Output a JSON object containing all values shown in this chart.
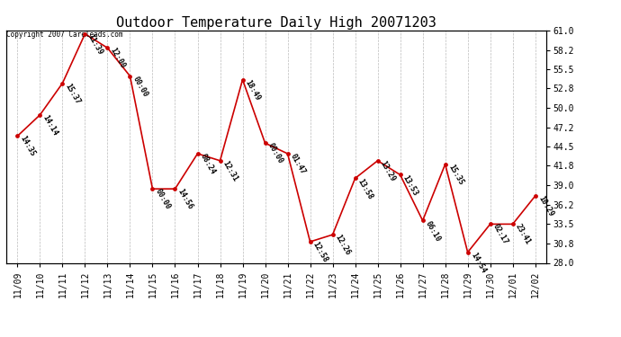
{
  "title": "Outdoor Temperature Daily High 20071203",
  "copyright": "Copyright 2007 Careleads.com",
  "x_labels": [
    "11/09",
    "11/10",
    "11/11",
    "11/12",
    "11/13",
    "11/14",
    "11/15",
    "11/16",
    "11/17",
    "11/18",
    "11/19",
    "11/20",
    "11/21",
    "11/22",
    "11/23",
    "11/24",
    "11/25",
    "11/26",
    "11/27",
    "11/28",
    "11/29",
    "11/30",
    "12/01",
    "12/02"
  ],
  "y_values": [
    46.0,
    49.0,
    53.5,
    60.5,
    58.5,
    54.5,
    38.5,
    38.5,
    43.5,
    42.5,
    54.0,
    45.0,
    43.5,
    31.0,
    32.0,
    40.0,
    42.5,
    40.5,
    34.0,
    42.0,
    29.5,
    33.5,
    33.5,
    37.5
  ],
  "point_labels": [
    "14:35",
    "14:14",
    "15:37",
    "11:39",
    "12:00",
    "00:00",
    "00:00",
    "14:56",
    "08:24",
    "12:31",
    "18:49",
    "00:00",
    "01:47",
    "12:58",
    "12:26",
    "13:58",
    "13:29",
    "13:53",
    "06:10",
    "15:35",
    "14:54",
    "02:17",
    "23:41",
    "10:29"
  ],
  "ylim": [
    28.0,
    61.0
  ],
  "yticks": [
    28.0,
    30.8,
    33.5,
    36.2,
    39.0,
    41.8,
    44.5,
    47.2,
    50.0,
    52.8,
    55.5,
    58.2,
    61.0
  ],
  "line_color": "#cc0000",
  "marker_color": "#cc0000",
  "bg_color": "#ffffff",
  "grid_color": "#bbbbbb",
  "title_fontsize": 11,
  "label_fontsize": 6,
  "tick_fontsize": 7,
  "copyright_fontsize": 5.5
}
